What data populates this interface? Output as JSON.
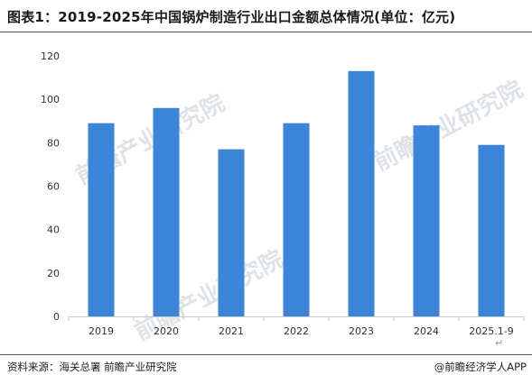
{
  "title": "图表1：2019-2025年中国锅炉制造行业出口金额总体情况(单位：亿元)",
  "footer": {
    "source": "资料来源：海关总署 前瞻产业研究院",
    "credit": "@前瞻经济学人APP"
  },
  "watermark": "前瞻产业研究院",
  "para_mark": "↵",
  "colors": {
    "bar": "#3d85d8",
    "axis": "#c9c9c9"
  },
  "chart_data": {
    "type": "bar",
    "categories": [
      "2019",
      "2020",
      "2021",
      "2022",
      "2023",
      "2024",
      "2025.1-9"
    ],
    "values": [
      89,
      96,
      77,
      89,
      113,
      88,
      79
    ],
    "title": "",
    "xlabel": "",
    "ylabel": "",
    "ylim": [
      0,
      120
    ],
    "yticks": [
      0,
      20,
      40,
      60,
      80,
      100,
      120
    ],
    "grid": false,
    "legend": "none"
  }
}
